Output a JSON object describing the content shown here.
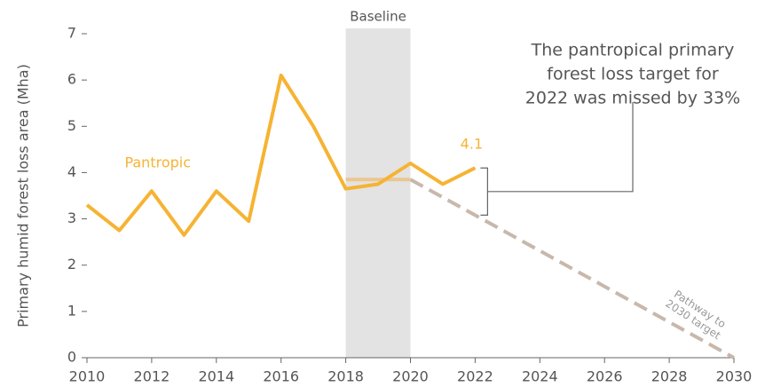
{
  "chart_data": {
    "type": "line",
    "y_label": "Primary humid forest loss area (Mha)",
    "x": [
      2010,
      2011,
      2012,
      2013,
      2014,
      2015,
      2016,
      2017,
      2018,
      2019,
      2020,
      2021,
      2022,
      2023,
      2024,
      2025,
      2026,
      2027,
      2028,
      2029,
      2030
    ],
    "xlim": [
      2010,
      2030
    ],
    "xticks": [
      2010,
      2012,
      2014,
      2016,
      2018,
      2020,
      2022,
      2024,
      2026,
      2028,
      2030
    ],
    "ylim": [
      0,
      7
    ],
    "yticks": [
      0,
      1,
      2,
      3,
      4,
      5,
      6,
      7
    ],
    "baseline_band": {
      "label": "Baseline",
      "xlim": [
        2018,
        2020
      ],
      "color": "#e3e3e3"
    },
    "series": [
      {
        "name": "Pantropic",
        "color": "#f6b333",
        "style": "solid",
        "values": [
          3.3,
          2.75,
          3.6,
          2.65,
          3.6,
          2.95,
          6.1,
          5.0,
          3.65,
          3.75,
          4.2,
          3.75,
          4.1,
          null,
          null,
          null,
          null,
          null,
          null,
          null,
          null
        ]
      },
      {
        "color": "#ebc68f",
        "style": "solid",
        "values": [
          null,
          null,
          null,
          null,
          null,
          null,
          null,
          null,
          3.85,
          3.85,
          3.85,
          null,
          null,
          null,
          null,
          null,
          null,
          null,
          null,
          null,
          null
        ]
      },
      {
        "name": [
          "Pathway to",
          "2030 target"
        ],
        "color": "#c8b8ab",
        "style": "dashed",
        "values": [
          null,
          null,
          null,
          null,
          null,
          null,
          null,
          null,
          null,
          null,
          3.85,
          3.465,
          3.08,
          2.695,
          2.31,
          1.925,
          1.54,
          1.155,
          0.77,
          0.385,
          0
        ]
      }
    ],
    "annotation": [
      "The pantropical primary",
      "forest loss target for",
      "2022 was missed by 33%"
    ]
  }
}
